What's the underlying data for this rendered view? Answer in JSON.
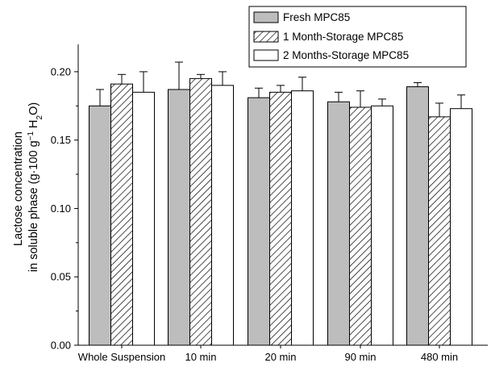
{
  "chart_data": {
    "type": "bar",
    "categories": [
      "Whole Suspension",
      "10 min",
      "20 min",
      "90 min",
      "480 min"
    ],
    "series": [
      {
        "name": "Fresh MPC85",
        "pattern": "solid-gray",
        "color": "#bdbdbd",
        "values": [
          0.175,
          0.187,
          0.181,
          0.178,
          0.189
        ],
        "errors": [
          0.012,
          0.02,
          0.007,
          0.007,
          0.003
        ]
      },
      {
        "name": "1 Month-Storage MPC85",
        "pattern": "diagonal-hatch",
        "color": "#ffffff",
        "values": [
          0.191,
          0.195,
          0.185,
          0.174,
          0.167
        ],
        "errors": [
          0.007,
          0.003,
          0.005,
          0.012,
          0.01
        ]
      },
      {
        "name": "2 Months-Storage MPC85",
        "pattern": "white",
        "color": "#ffffff",
        "values": [
          0.185,
          0.19,
          0.186,
          0.175,
          0.173
        ],
        "errors": [
          0.015,
          0.01,
          0.01,
          0.005,
          0.01
        ]
      }
    ],
    "ylabel_line1": "Lactose concentration",
    "ylabel_line2": "in soluble phase (g·100 g",
    "ylabel_sup": "−1",
    "ylabel_mid": " H",
    "ylabel_sub": "2",
    "ylabel_end": "O)",
    "xlabel": "",
    "ylim": [
      0.0,
      0.22
    ],
    "yticks": [
      0.0,
      0.05,
      0.1,
      0.15,
      0.2
    ],
    "ytick_labels": [
      "0.00",
      "0.05",
      "0.10",
      "0.15",
      "0.20"
    ],
    "grid": false,
    "legend_position": "top-right",
    "bar_edge_color": "#000000"
  }
}
